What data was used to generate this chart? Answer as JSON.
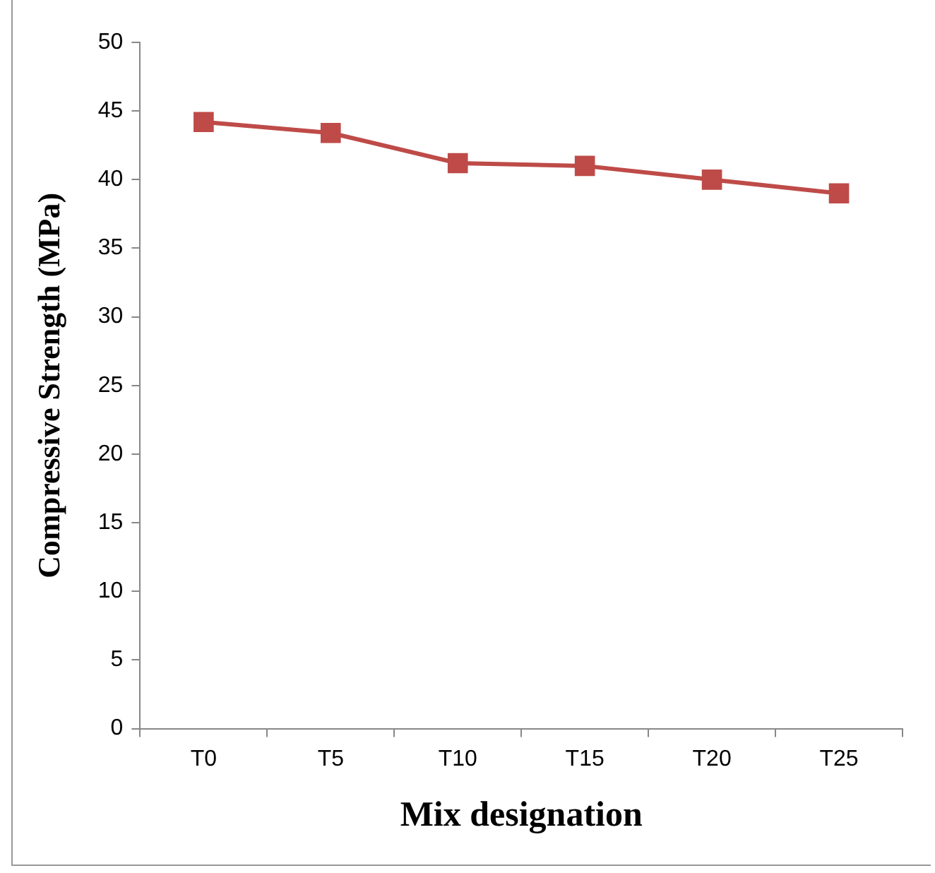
{
  "chart_data": {
    "type": "line",
    "xlabel": "Mix designation",
    "ylabel": "Compressive Strength (MPa)",
    "categories": [
      "T0",
      "T5",
      "T10",
      "T15",
      "T20",
      "T25"
    ],
    "series": [
      {
        "color": "#be4b48",
        "values": [
          44.2,
          43.4,
          41.2,
          41.0,
          40.0,
          39.0
        ]
      }
    ],
    "ylim": [
      0,
      50
    ],
    "yticks": [
      0,
      5,
      10,
      15,
      20,
      25,
      30,
      35,
      40,
      45,
      50
    ],
    "grid": false,
    "legend": false,
    "marker": "square",
    "line_style": "solid"
  }
}
